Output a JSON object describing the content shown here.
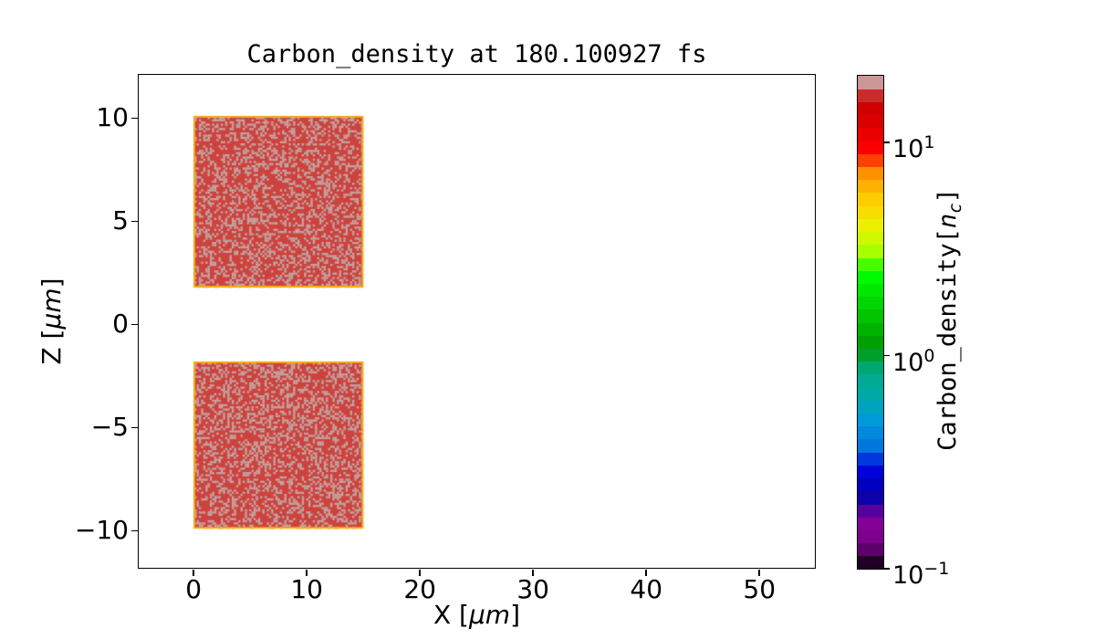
{
  "page": {
    "background": "#ffffff"
  },
  "chart_data": {
    "type": "heatmap",
    "title": "Carbon_density at 180.100927 fs",
    "time_fs": 180.100927,
    "xlabel": {
      "prefix": "X [",
      "unit": "μm",
      "suffix": "]"
    },
    "ylabel": {
      "prefix": "Z [",
      "unit": "μm",
      "suffix": "]"
    },
    "xlim": [
      -4.85,
      54.9
    ],
    "ylim": [
      -11.8,
      12.1
    ],
    "xticks": [
      0,
      10,
      20,
      30,
      40,
      50
    ],
    "yticks": [
      10,
      5,
      0,
      -5,
      -10
    ],
    "grid": false,
    "legend": "none",
    "slabs": [
      {
        "x0": 0,
        "x1": 15,
        "z0": 1.8,
        "z1": 10.1,
        "description": "upper carbon slab, density ~10-20 nc with sampling-noise speckle"
      },
      {
        "x0": 0,
        "x1": 15,
        "z0": -9.9,
        "z1": -1.8,
        "description": "lower carbon slab, density ~10-20 nc with sampling-noise speckle"
      }
    ],
    "slab_style": {
      "fill": "#ce423e",
      "speckle": "#c2a7a4",
      "speckle_fraction": 0.34,
      "border": "#ffae00"
    },
    "colorbar": {
      "label": {
        "prefix": "Carbon_density[",
        "var": "n",
        "sub": "c",
        "suffix": "]"
      },
      "scale": "log",
      "vmin": 0.1,
      "vmax": 20.6,
      "n_bands": 38,
      "colormap": "nipy_spectral",
      "ticks": [
        {
          "base": "10",
          "exp": "1",
          "value": 10
        },
        {
          "base": "10",
          "exp": "0",
          "value": 1
        },
        {
          "base": "10",
          "exp": "−1",
          "value": 0.1
        }
      ],
      "colormap_stops": [
        [
          0.0,
          0.0,
          0.0,
          0.0
        ],
        [
          0.05,
          0.4667,
          0.0,
          0.5333
        ],
        [
          0.1,
          0.5333,
          0.0,
          0.6
        ],
        [
          0.15,
          0.0,
          0.0,
          0.6667
        ],
        [
          0.2,
          0.0,
          0.0,
          0.8667
        ],
        [
          0.25,
          0.0,
          0.4667,
          0.8667
        ],
        [
          0.3,
          0.0,
          0.6,
          0.8667
        ],
        [
          0.35,
          0.0,
          0.6667,
          0.6667
        ],
        [
          0.4,
          0.0,
          0.6667,
          0.5333
        ],
        [
          0.45,
          0.0,
          0.6,
          0.0
        ],
        [
          0.5,
          0.0,
          0.7333,
          0.0
        ],
        [
          0.55,
          0.0,
          0.8667,
          0.0
        ],
        [
          0.6,
          0.0,
          1.0,
          0.0
        ],
        [
          0.65,
          0.7333,
          1.0,
          0.0
        ],
        [
          0.7,
          0.9333,
          0.9333,
          0.0
        ],
        [
          0.75,
          1.0,
          0.8,
          0.0
        ],
        [
          0.8,
          1.0,
          0.6,
          0.0
        ],
        [
          0.85,
          1.0,
          0.0,
          0.0
        ],
        [
          0.9,
          0.8667,
          0.0,
          0.0
        ],
        [
          0.95,
          0.8,
          0.0,
          0.0
        ],
        [
          1.0,
          0.8,
          0.8,
          0.8
        ]
      ]
    }
  }
}
